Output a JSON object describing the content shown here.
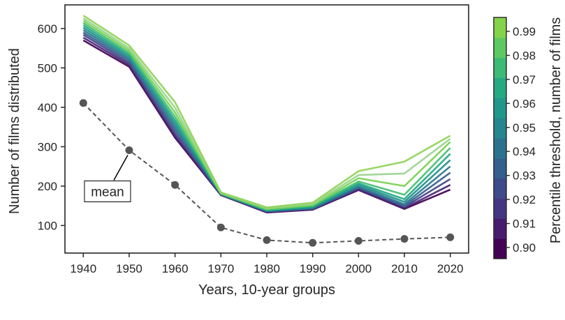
{
  "chart_data": {
    "type": "line",
    "xlabel": "Years, 10-year groups",
    "ylabel": "Number of films distributed",
    "x": [
      1940,
      1950,
      1960,
      1970,
      1980,
      1990,
      2000,
      2010,
      2020
    ],
    "x_ticks": [
      "1940",
      "1950",
      "1960",
      "1970",
      "1980",
      "1990",
      "2000",
      "2010",
      "2020"
    ],
    "xlim": [
      1936,
      2024
    ],
    "ylim": [
      30,
      660
    ],
    "y_ticks": [
      100,
      200,
      300,
      400,
      500,
      600
    ],
    "grid": false,
    "mean_series": {
      "values": [
        411,
        291,
        203,
        95,
        63,
        56,
        61,
        66,
        70
      ],
      "color": "#555555",
      "style": "dashed",
      "marker": "circle"
    },
    "threshold_series": [
      {
        "threshold": 0.9,
        "values": [
          570,
          503,
          323,
          177,
          133,
          140,
          190,
          142,
          191
        ]
      },
      {
        "threshold": 0.91,
        "values": [
          577,
          508,
          328,
          178,
          134,
          141,
          192,
          144,
          203
        ]
      },
      {
        "threshold": 0.92,
        "values": [
          584,
          513,
          335,
          178,
          135,
          142,
          194,
          147,
          218
        ]
      },
      {
        "threshold": 0.93,
        "values": [
          590,
          518,
          343,
          179,
          136,
          143,
          196,
          150,
          234
        ]
      },
      {
        "threshold": 0.94,
        "values": [
          596,
          523,
          351,
          179,
          137,
          144,
          199,
          154,
          250
        ]
      },
      {
        "threshold": 0.95,
        "values": [
          602,
          528,
          359,
          180,
          138,
          146,
          203,
          160,
          266
        ]
      },
      {
        "threshold": 0.96,
        "values": [
          608,
          533,
          367,
          180,
          139,
          148,
          207,
          167,
          282
        ]
      },
      {
        "threshold": 0.97,
        "values": [
          614,
          538,
          376,
          181,
          140,
          150,
          212,
          178,
          297
        ]
      },
      {
        "threshold": 0.98,
        "values": [
          620,
          544,
          387,
          182,
          142,
          152,
          220,
          200,
          312
        ]
      },
      {
        "threshold": 0.985,
        "values": [
          626,
          550,
          399,
          183,
          144,
          155,
          228,
          232,
          320
        ]
      },
      {
        "threshold": 0.99,
        "values": [
          633,
          557,
          413,
          184,
          146,
          158,
          238,
          262,
          328
        ]
      }
    ],
    "annotation": {
      "text": "mean",
      "target_x": 1950,
      "target_y": 291
    },
    "colorbar": {
      "label": "Percentile threshold, number of films",
      "ticks": [
        "0.90",
        "0.91",
        "0.92",
        "0.93",
        "0.94",
        "0.95",
        "0.96",
        "0.97",
        "0.98",
        "0.99"
      ],
      "colors": [
        "#440154",
        "#481c6e",
        "#453681",
        "#3e4a89",
        "#355f8d",
        "#2c728e",
        "#24868e",
        "#1f988b",
        "#23aa83",
        "#3bbb75",
        "#5ec962",
        "#84d44b"
      ]
    }
  }
}
